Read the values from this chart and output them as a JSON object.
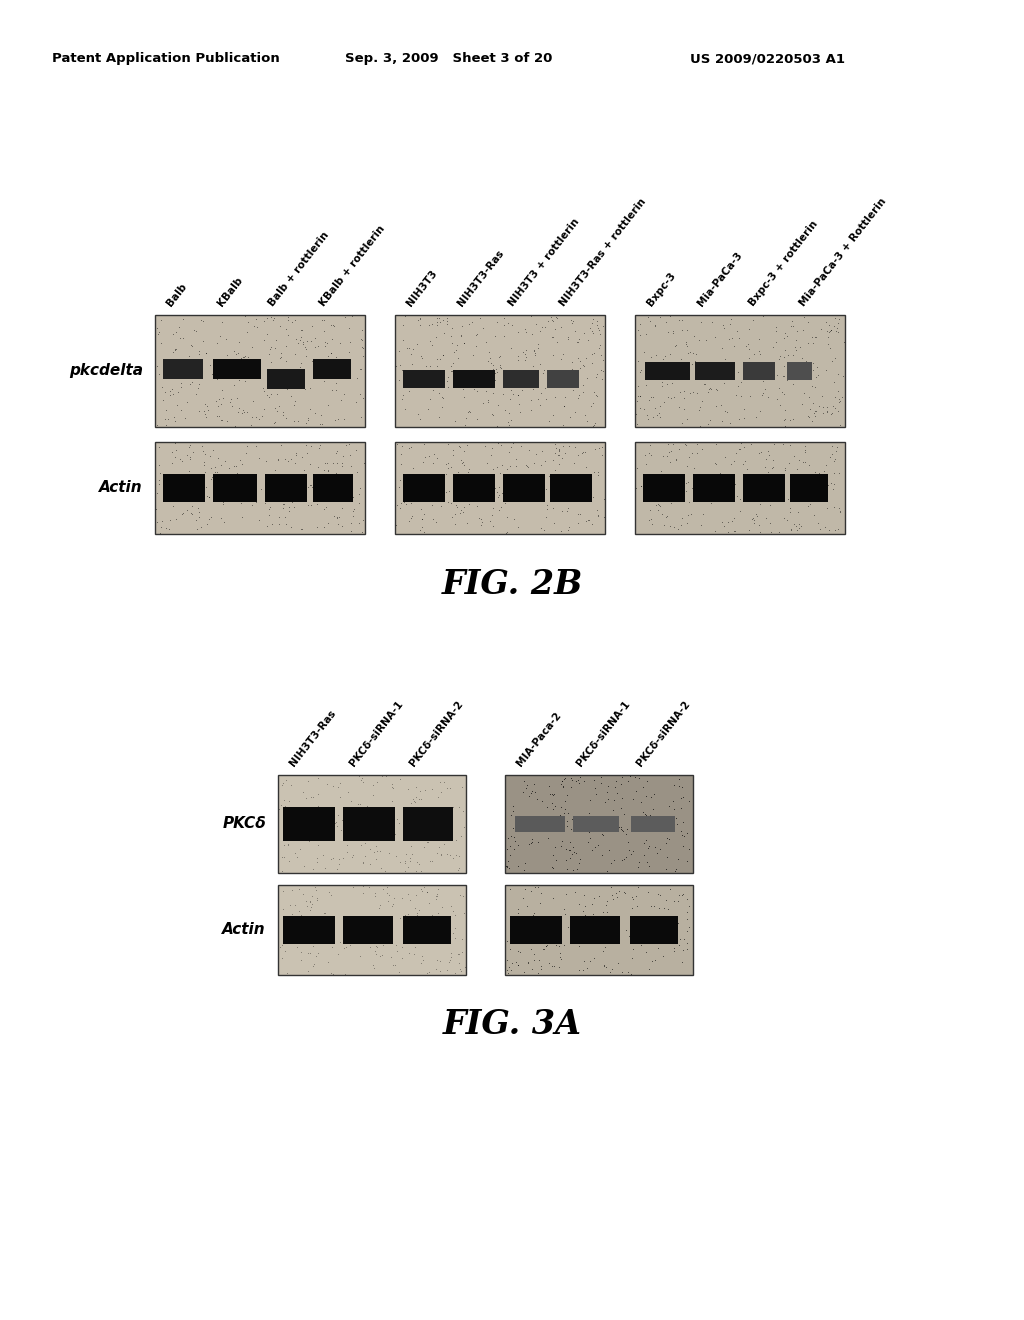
{
  "header_left": "Patent Application Publication",
  "header_mid": "Sep. 3, 2009   Sheet 3 of 20",
  "header_right": "US 2009/0220503 A1",
  "fig2b_title": "FIG. 2B",
  "fig3a_title": "FIG. 3A",
  "fig2b_row_labels": [
    "pkcdelta",
    "Actin"
  ],
  "fig3a_row_labels": [
    "PKCδ",
    "Actin"
  ],
  "fig2b_col_labels_group1": [
    "Balb",
    "KBalb",
    "Balb + rottlerin",
    "KBalb + rottlerin"
  ],
  "fig2b_col_labels_group2": [
    "NIH3T3",
    "NIH3T3-Ras",
    "NIH3T3 + rottlerin",
    "NIH3T3-Ras + rottlerin"
  ],
  "fig2b_col_labels_group3": [
    "Bxpc-3",
    "Mia-PaCa-3",
    "Bxpc-3 + rottlerin",
    "Mia-PaCa-3 + Rottlerin"
  ],
  "fig3a_col_labels_group1": [
    "NIH3T3-Ras",
    "PKCδ-siRNA-1",
    "PKCδ-siRNA-2"
  ],
  "fig3a_col_labels_group2": [
    "MIA-Paca-2",
    "PKCδ-siRNA-1",
    "PKCδ-siRNA-2"
  ],
  "bg_color": "#ffffff",
  "text_color": "#000000"
}
